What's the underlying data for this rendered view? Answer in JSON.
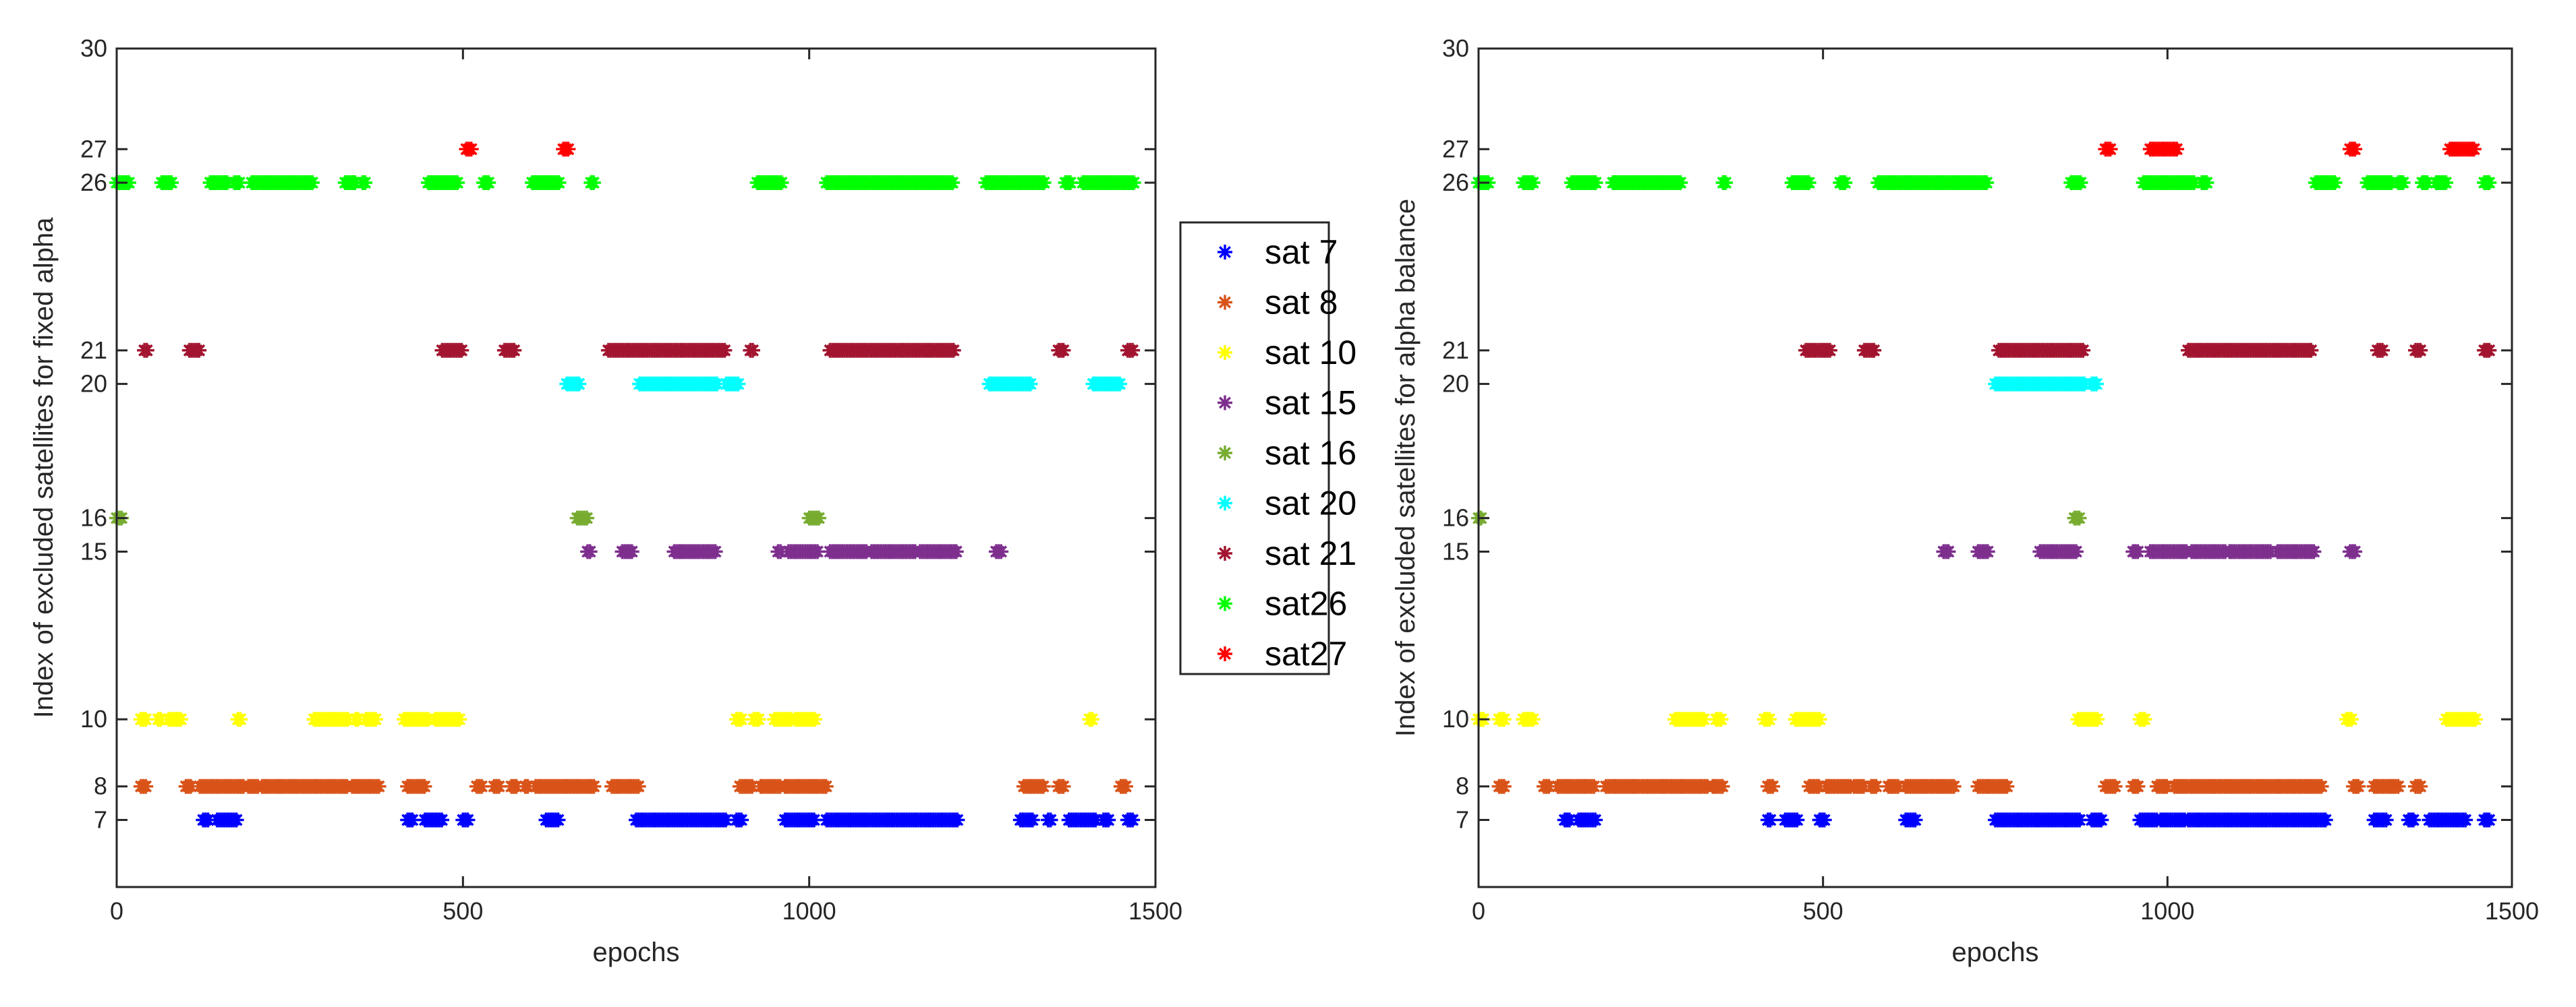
{
  "chart_data": [
    {
      "type": "scatter",
      "title": "",
      "xlabel": "epochs",
      "ylabel": "Index of excluded satellites for fixed alpha",
      "xlim": [
        0,
        1500
      ],
      "ylim": [
        5,
        30
      ],
      "xticks": [
        0,
        500,
        1000,
        1500
      ],
      "yticks": [
        7,
        8,
        10,
        15,
        16,
        20,
        21,
        26,
        27,
        30
      ],
      "series": [
        {
          "name": "sat 7",
          "y": 7,
          "segments": [
            [
              125,
              135
            ],
            [
              145,
              175
            ],
            [
              420,
              430
            ],
            [
              445,
              470
            ],
            [
              500,
              510
            ],
            [
              620,
              640
            ],
            [
              750,
              880
            ],
            [
              895,
              905
            ],
            [
              965,
              1010
            ],
            [
              1025,
              1215
            ],
            [
              1305,
              1325
            ],
            [
              1345,
              1350
            ],
            [
              1375,
              1415
            ],
            [
              1425,
              1435
            ],
            [
              1460,
              1470
            ]
          ]
        },
        {
          "name": "sat 8",
          "y": 8,
          "segments": [
            [
              35,
              45
            ],
            [
              100,
              110
            ],
            [
              120,
              185
            ],
            [
              190,
              205
            ],
            [
              210,
              335
            ],
            [
              340,
              380
            ],
            [
              420,
              445
            ],
            [
              520,
              530
            ],
            [
              545,
              555
            ],
            [
              570,
              580
            ],
            [
              590,
              595
            ],
            [
              605,
              690
            ],
            [
              715,
              755
            ],
            [
              900,
              920
            ],
            [
              930,
              960
            ],
            [
              965,
              1025
            ],
            [
              1310,
              1340
            ],
            [
              1360,
              1370
            ],
            [
              1450,
              1460
            ]
          ]
        },
        {
          "name": "sat 10",
          "y": 10,
          "segments": [
            [
              35,
              45
            ],
            [
              60,
              65
            ],
            [
              75,
              95
            ],
            [
              175,
              180
            ],
            [
              285,
              335
            ],
            [
              345,
              350
            ],
            [
              360,
              375
            ],
            [
              415,
              450
            ],
            [
              460,
              495
            ],
            [
              895,
              905
            ],
            [
              920,
              930
            ],
            [
              950,
              975
            ],
            [
              980,
              1010
            ],
            [
              1405,
              1410
            ]
          ]
        },
        {
          "name": "sat 15",
          "y": 15,
          "segments": [
            [
              680,
              685
            ],
            [
              730,
              745
            ],
            [
              805,
              865
            ],
            [
              955,
              960
            ],
            [
              970,
              1015
            ],
            [
              1030,
              1085
            ],
            [
              1090,
              1155
            ],
            [
              1160,
              1215
            ],
            [
              1270,
              1280
            ]
          ]
        },
        {
          "name": "sat 16",
          "y": 16,
          "segments": [
            [
              0,
              10
            ],
            [
              665,
              680
            ],
            [
              1000,
              1015
            ]
          ]
        },
        {
          "name": "sat 20",
          "y": 20,
          "segments": [
            [
              650,
              670
            ],
            [
              755,
              870
            ],
            [
              880,
              900
            ],
            [
              1260,
              1320
            ],
            [
              1410,
              1450
            ]
          ]
        },
        {
          "name": "sat 21",
          "y": 21,
          "segments": [
            [
              40,
              45
            ],
            [
              105,
              120
            ],
            [
              470,
              500
            ],
            [
              560,
              575
            ],
            [
              710,
              880
            ],
            [
              915,
              920
            ],
            [
              1030,
              1210
            ],
            [
              1360,
              1370
            ],
            [
              1460,
              1470
            ]
          ]
        },
        {
          "name": "sat26",
          "y": 26,
          "segments": [
            [
              0,
              20
            ],
            [
              65,
              80
            ],
            [
              135,
              160
            ],
            [
              170,
              180
            ],
            [
              195,
              285
            ],
            [
              330,
              345
            ],
            [
              355,
              360
            ],
            [
              450,
              495
            ],
            [
              530,
              540
            ],
            [
              600,
              640
            ],
            [
              685,
              690
            ],
            [
              925,
              960
            ],
            [
              1025,
              1210
            ],
            [
              1255,
              1340
            ],
            [
              1370,
              1380
            ],
            [
              1395,
              1470
            ]
          ]
        },
        {
          "name": "sat27",
          "y": 27,
          "segments": [
            [
              505,
              515
            ],
            [
              645,
              655
            ]
          ]
        }
      ]
    },
    {
      "type": "scatter",
      "title": "",
      "xlabel": "epochs",
      "ylabel": "Index of excluded satellites for alpha balance",
      "xlim": [
        0,
        1500
      ],
      "ylim": [
        5,
        30
      ],
      "xticks": [
        0,
        500,
        1000,
        1500
      ],
      "yticks": [
        7,
        8,
        10,
        15,
        16,
        20,
        21,
        26,
        27,
        30
      ],
      "series": [
        {
          "name": "sat 7",
          "y": 7,
          "segments": [
            [
              125,
              135
            ],
            [
              145,
              170
            ],
            [
              420,
              425
            ],
            [
              445,
              465
            ],
            [
              495,
              505
            ],
            [
              620,
              635
            ],
            [
              750,
              875
            ],
            [
              890,
              905
            ],
            [
              960,
              985
            ],
            [
              990,
              1025
            ],
            [
              1030,
              1230
            ],
            [
              1300,
              1320
            ],
            [
              1350,
              1360
            ],
            [
              1380,
              1435
            ],
            [
              1460,
              1470
            ]
          ]
        },
        {
          "name": "sat 8",
          "y": 8,
          "segments": [
            [
              30,
              40
            ],
            [
              95,
              105
            ],
            [
              115,
              170
            ],
            [
              185,
              335
            ],
            [
              340,
              355
            ],
            [
              420,
              430
            ],
            [
              480,
              495
            ],
            [
              505,
              540
            ],
            [
              545,
              560
            ],
            [
              570,
              580
            ],
            [
              595,
              610
            ],
            [
              620,
              690
            ],
            [
              725,
              770
            ],
            [
              910,
              925
            ],
            [
              950,
              960
            ],
            [
              985,
              1000
            ],
            [
              1010,
              1225
            ],
            [
              1270,
              1280
            ],
            [
              1300,
              1335
            ],
            [
              1360,
              1370
            ]
          ]
        },
        {
          "name": "sat 10",
          "y": 10,
          "segments": [
            [
              0,
              10
            ],
            [
              30,
              40
            ],
            [
              65,
              80
            ],
            [
              285,
              330
            ],
            [
              345,
              355
            ],
            [
              415,
              425
            ],
            [
              460,
              495
            ],
            [
              870,
              900
            ],
            [
              960,
              970
            ],
            [
              1260,
              1270
            ],
            [
              1405,
              1450
            ]
          ]
        },
        {
          "name": "sat 15",
          "y": 15,
          "segments": [
            [
              675,
              685
            ],
            [
              725,
              740
            ],
            [
              815,
              870
            ],
            [
              950,
              960
            ],
            [
              975,
              1030
            ],
            [
              1035,
              1085
            ],
            [
              1090,
              1150
            ],
            [
              1160,
              1215
            ],
            [
              1265,
              1275
            ]
          ]
        },
        {
          "name": "sat 16",
          "y": 16,
          "segments": [
            [
              0,
              5
            ],
            [
              865,
              875
            ]
          ]
        },
        {
          "name": "sat 20",
          "y": 20,
          "segments": [
            [
              750,
              880
            ],
            [
              890,
              900
            ]
          ]
        },
        {
          "name": "sat 21",
          "y": 21,
          "segments": [
            [
              475,
              510
            ],
            [
              560,
              575
            ],
            [
              755,
              880
            ],
            [
              1030,
              1210
            ],
            [
              1305,
              1315
            ],
            [
              1360,
              1370
            ],
            [
              1460,
              1470
            ]
          ]
        },
        {
          "name": "sat26",
          "y": 26,
          "segments": [
            [
              0,
              15
            ],
            [
              65,
              80
            ],
            [
              135,
              170
            ],
            [
              195,
              295
            ],
            [
              355,
              360
            ],
            [
              455,
              480
            ],
            [
              525,
              535
            ],
            [
              580,
              740
            ],
            [
              860,
              875
            ],
            [
              965,
              1040
            ],
            [
              1050,
              1060
            ],
            [
              1215,
              1245
            ],
            [
              1290,
              1325
            ],
            [
              1335,
              1345
            ],
            [
              1370,
              1380
            ],
            [
              1390,
              1405
            ],
            [
              1460,
              1470
            ]
          ]
        },
        {
          "name": "sat27",
          "y": 27,
          "segments": [
            [
              910,
              920
            ],
            [
              975,
              1015
            ],
            [
              1265,
              1275
            ],
            [
              1410,
              1445
            ]
          ]
        }
      ]
    }
  ],
  "legend": {
    "location": "between-panels",
    "entries": [
      {
        "label": "sat 7",
        "color": "#0000ff"
      },
      {
        "label": "sat 8",
        "color": "#d95319"
      },
      {
        "label": "sat 10",
        "color": "#ffff00"
      },
      {
        "label": "sat 15",
        "color": "#7e2f8e"
      },
      {
        "label": "sat 16",
        "color": "#77ac30"
      },
      {
        "label": "sat 20",
        "color": "#00ffff"
      },
      {
        "label": "sat 21",
        "color": "#a2142f"
      },
      {
        "label": "sat26",
        "color": "#00ff00"
      },
      {
        "label": "sat27",
        "color": "#ff0000"
      }
    ],
    "marker_icon": "asterisk-icon"
  }
}
